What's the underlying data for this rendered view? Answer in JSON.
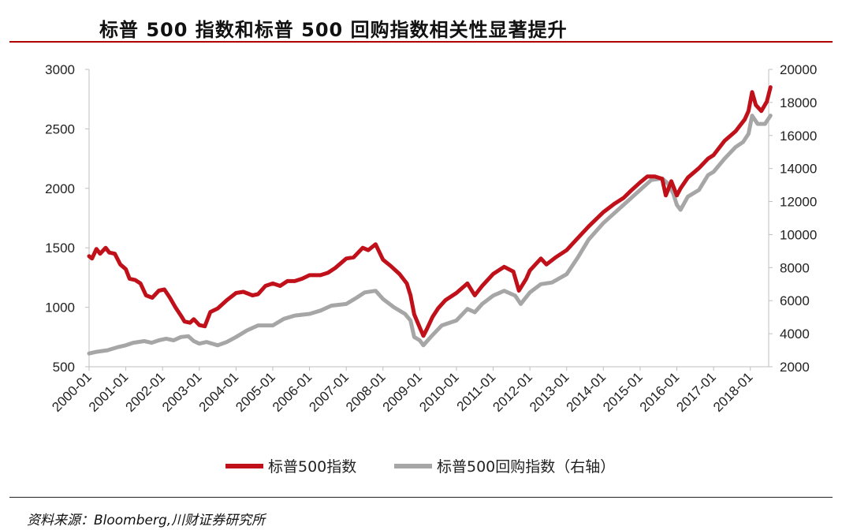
{
  "header": {
    "title": "标普 500 指数和标普 500 回购指数相关性显著提升"
  },
  "footer": {
    "source": "资料来源：Bloomberg,川财证券研究所"
  },
  "chart_data": {
    "type": "line",
    "title": "标普 500 指数和标普 500 回购指数相关性显著提升",
    "x_tick_labels": [
      "2000-01",
      "2001-01",
      "2002-01",
      "2003-01",
      "2004-01",
      "2005-01",
      "2006-01",
      "2007-01",
      "2008-01",
      "2009-01",
      "2010-01",
      "2011-01",
      "2012-01",
      "2013-01",
      "2014-01",
      "2015-01",
      "2016-01",
      "2017-01",
      "2018-01"
    ],
    "x_range": [
      2000.0,
      2018.5
    ],
    "y_left": {
      "range": [
        500,
        3000
      ],
      "ticks": [
        500,
        1000,
        1500,
        2000,
        2500,
        3000
      ]
    },
    "y_right": {
      "range": [
        2000,
        20000
      ],
      "ticks": [
        2000,
        4000,
        6000,
        8000,
        10000,
        12000,
        14000,
        16000,
        18000,
        20000
      ]
    },
    "grid": false,
    "legend_position": "bottom",
    "colors": {
      "sp500": "#c0101a",
      "buyback": "#a6a6a6"
    },
    "series": [
      {
        "name": "标普500指数",
        "axis": "left",
        "x": [
          2000.0,
          2000.08,
          2000.2,
          2000.3,
          2000.45,
          2000.55,
          2000.7,
          2000.85,
          2001.0,
          2001.1,
          2001.25,
          2001.4,
          2001.55,
          2001.72,
          2001.9,
          2002.05,
          2002.2,
          2002.35,
          2002.5,
          2002.6,
          2002.75,
          2002.85,
          2003.0,
          2003.15,
          2003.3,
          2003.5,
          2003.75,
          2004.0,
          2004.2,
          2004.45,
          2004.6,
          2004.8,
          2005.0,
          2005.2,
          2005.4,
          2005.6,
          2005.8,
          2006.0,
          2006.3,
          2006.5,
          2006.7,
          2007.0,
          2007.2,
          2007.45,
          2007.6,
          2007.8,
          2008.0,
          2008.2,
          2008.45,
          2008.65,
          2008.75,
          2008.85,
          2009.0,
          2009.1,
          2009.2,
          2009.35,
          2009.5,
          2009.7,
          2010.0,
          2010.3,
          2010.5,
          2010.7,
          2011.0,
          2011.3,
          2011.55,
          2011.7,
          2011.9,
          2012.0,
          2012.3,
          2012.45,
          2012.7,
          2013.0,
          2013.3,
          2013.6,
          2014.0,
          2014.3,
          2014.55,
          2014.75,
          2015.0,
          2015.2,
          2015.4,
          2015.6,
          2015.7,
          2015.85,
          2016.0,
          2016.1,
          2016.3,
          2016.6,
          2016.85,
          2017.0,
          2017.3,
          2017.6,
          2017.85,
          2017.95,
          2018.05,
          2018.15,
          2018.3,
          2018.45,
          2018.55
        ],
        "y": [
          1430,
          1410,
          1490,
          1450,
          1500,
          1460,
          1450,
          1360,
          1320,
          1240,
          1230,
          1200,
          1100,
          1080,
          1140,
          1150,
          1080,
          1000,
          930,
          880,
          870,
          900,
          850,
          840,
          960,
          990,
          1060,
          1120,
          1130,
          1100,
          1110,
          1180,
          1200,
          1180,
          1220,
          1220,
          1240,
          1270,
          1270,
          1290,
          1330,
          1410,
          1420,
          1500,
          1480,
          1530,
          1400,
          1350,
          1280,
          1200,
          1100,
          940,
          830,
          760,
          820,
          920,
          990,
          1060,
          1120,
          1200,
          1100,
          1180,
          1280,
          1340,
          1300,
          1140,
          1240,
          1310,
          1410,
          1360,
          1420,
          1480,
          1580,
          1680,
          1800,
          1870,
          1920,
          1980,
          2050,
          2100,
          2100,
          2080,
          1940,
          2060,
          1940,
          2000,
          2090,
          2170,
          2250,
          2280,
          2400,
          2480,
          2580,
          2650,
          2810,
          2700,
          2650,
          2730,
          2850
        ]
      },
      {
        "name": "标普500回购指数（右轴）",
        "axis": "right",
        "x": [
          2000.0,
          2000.2,
          2000.5,
          2000.8,
          2001.0,
          2001.2,
          2001.5,
          2001.7,
          2001.9,
          2002.1,
          2002.3,
          2002.5,
          2002.7,
          2002.85,
          2003.0,
          2003.2,
          2003.5,
          2003.75,
          2004.0,
          2004.3,
          2004.6,
          2005.0,
          2005.3,
          2005.6,
          2006.0,
          2006.3,
          2006.6,
          2007.0,
          2007.3,
          2007.5,
          2007.8,
          2008.0,
          2008.3,
          2008.6,
          2008.75,
          2008.85,
          2009.0,
          2009.1,
          2009.3,
          2009.6,
          2010.0,
          2010.3,
          2010.5,
          2010.7,
          2011.0,
          2011.3,
          2011.6,
          2011.75,
          2012.0,
          2012.3,
          2012.6,
          2013.0,
          2013.3,
          2013.6,
          2014.0,
          2014.3,
          2014.6,
          2015.0,
          2015.3,
          2015.6,
          2015.75,
          2015.9,
          2016.0,
          2016.1,
          2016.3,
          2016.6,
          2016.85,
          2017.0,
          2017.3,
          2017.6,
          2017.8,
          2017.95,
          2018.05,
          2018.2,
          2018.4,
          2018.55
        ],
        "y": [
          2800,
          2900,
          3000,
          3200,
          3300,
          3450,
          3550,
          3450,
          3600,
          3700,
          3600,
          3800,
          3850,
          3550,
          3400,
          3500,
          3300,
          3500,
          3800,
          4200,
          4500,
          4500,
          4900,
          5100,
          5200,
          5400,
          5700,
          5800,
          6200,
          6500,
          6600,
          6100,
          5600,
          5200,
          4800,
          3800,
          3600,
          3300,
          3800,
          4500,
          4800,
          5500,
          5300,
          5800,
          6300,
          6600,
          6300,
          5800,
          6500,
          7000,
          7100,
          7600,
          8600,
          9700,
          10700,
          11300,
          11900,
          12700,
          13300,
          13400,
          13100,
          12500,
          11800,
          11500,
          12300,
          12700,
          13600,
          13800,
          14600,
          15300,
          15600,
          16100,
          17200,
          16700,
          16700,
          17200
        ]
      }
    ]
  }
}
